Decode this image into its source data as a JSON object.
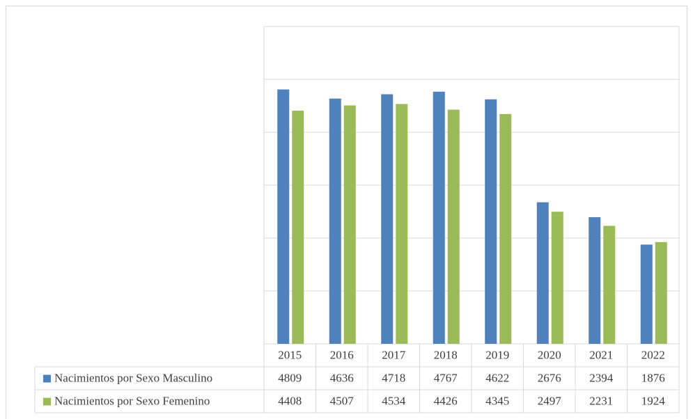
{
  "chart_data": {
    "type": "bar",
    "categories": [
      "2015",
      "2016",
      "2017",
      "2018",
      "2019",
      "2020",
      "2021",
      "2022"
    ],
    "series": [
      {
        "name": "Nacimientos por Sexo Masculino",
        "color": "#4f81bd",
        "values": [
          4809,
          4636,
          4718,
          4767,
          4622,
          2676,
          2394,
          1876
        ]
      },
      {
        "name": "Nacimientos por Sexo Femenino",
        "color": "#9bbb59",
        "values": [
          4408,
          4507,
          4534,
          4426,
          4345,
          2497,
          2231,
          1924
        ]
      }
    ],
    "ylim": [
      0,
      6000
    ],
    "yticks": [
      0,
      1000,
      2000,
      3000,
      4000,
      5000,
      6000
    ],
    "grid": true
  }
}
